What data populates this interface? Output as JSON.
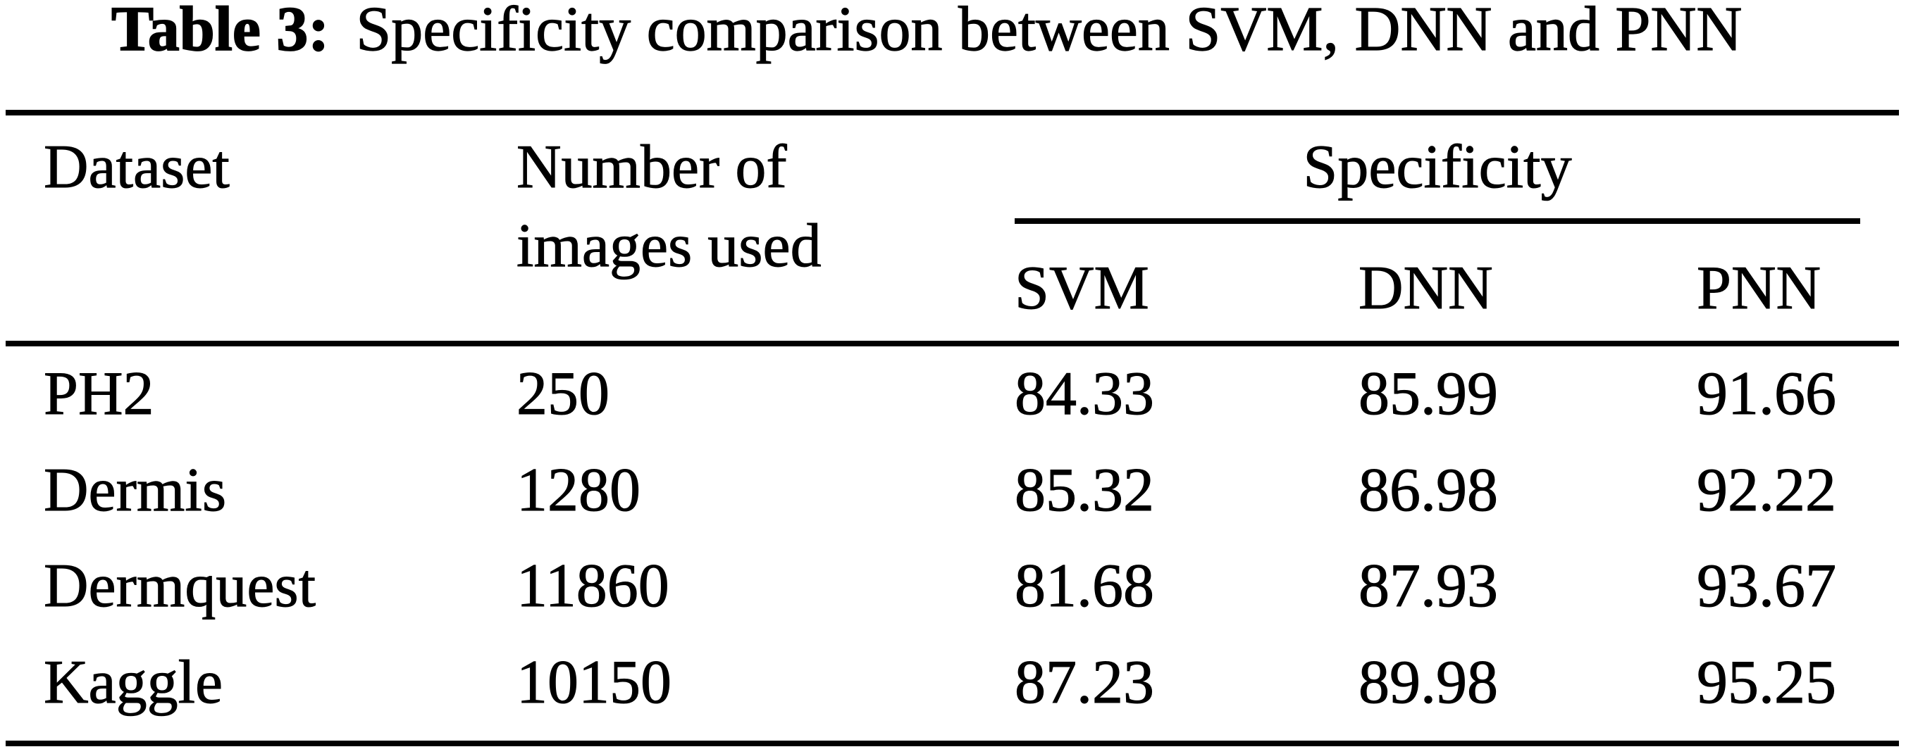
{
  "caption": {
    "label": "Table 3:",
    "text": "Specificity comparison between SVM, DNN and PNN"
  },
  "header": {
    "dataset": "Dataset",
    "images_line1": "Number of",
    "images_line2": "images used",
    "group": "Specificity",
    "sub": [
      "SVM",
      "DNN",
      "PNN"
    ]
  },
  "rows": [
    {
      "dataset": "PH2",
      "images": "250",
      "svm": "84.33",
      "dnn": "85.99",
      "pnn": "91.66"
    },
    {
      "dataset": "Dermis",
      "images": "1280",
      "svm": "85.32",
      "dnn": "86.98",
      "pnn": "92.22"
    },
    {
      "dataset": "Dermquest",
      "images": "11860",
      "svm": "81.68",
      "dnn": "87.93",
      "pnn": "93.67"
    },
    {
      "dataset": "Kaggle",
      "images": "10150",
      "svm": "87.23",
      "dnn": "89.98",
      "pnn": "95.25"
    }
  ],
  "colors": {
    "background": "#ffffff",
    "text": "#000000",
    "rule": "#000000"
  },
  "chart_data": {
    "type": "table",
    "title": "Table 3: Specificity comparison between SVM, DNN and PNN",
    "columns": [
      "Dataset",
      "Number of images used",
      "Specificity SVM",
      "Specificity DNN",
      "Specificity PNN"
    ],
    "rows": [
      [
        "PH2",
        250,
        84.33,
        85.99,
        91.66
      ],
      [
        "Dermis",
        1280,
        85.32,
        86.98,
        92.22
      ],
      [
        "Dermquest",
        11860,
        81.68,
        87.93,
        93.67
      ],
      [
        "Kaggle",
        10150,
        87.23,
        89.98,
        95.25
      ]
    ]
  }
}
